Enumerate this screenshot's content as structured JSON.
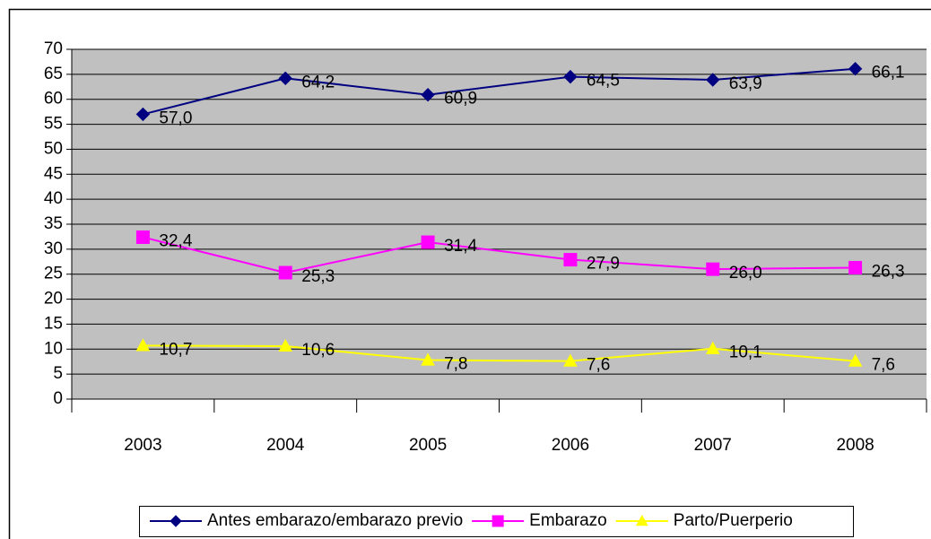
{
  "chart_data": {
    "type": "line",
    "categories": [
      "2003",
      "2004",
      "2005",
      "2006",
      "2007",
      "2008"
    ],
    "series": [
      {
        "name": "Antes embarazo/embarazo previo",
        "color": "#000080",
        "marker": "diamond",
        "values": [
          57.0,
          64.2,
          60.9,
          64.5,
          63.9,
          66.1
        ],
        "value_labels": [
          "57,0",
          "64,2",
          "60,9",
          "64,5",
          "63,9",
          "66,1"
        ]
      },
      {
        "name": "Embarazo",
        "color": "#ff00ff",
        "marker": "square",
        "values": [
          32.4,
          25.3,
          31.4,
          27.9,
          26.0,
          26.3
        ],
        "value_labels": [
          "32,4",
          "25,3",
          "31,4",
          "27,9",
          "26,0",
          "26,3"
        ]
      },
      {
        "name": "Parto/Puerperio",
        "color": "#ffff00",
        "marker": "triangle",
        "values": [
          10.7,
          10.6,
          7.8,
          7.6,
          10.1,
          7.6
        ],
        "value_labels": [
          "10,7",
          "10,6",
          "7,8",
          "7,6",
          "10,1",
          "7,6"
        ]
      }
    ],
    "ylim": [
      0,
      70
    ],
    "yticks": [
      0,
      5,
      10,
      15,
      20,
      25,
      30,
      35,
      40,
      45,
      50,
      55,
      60,
      65,
      70
    ],
    "grid": true,
    "legend": "bottom"
  }
}
